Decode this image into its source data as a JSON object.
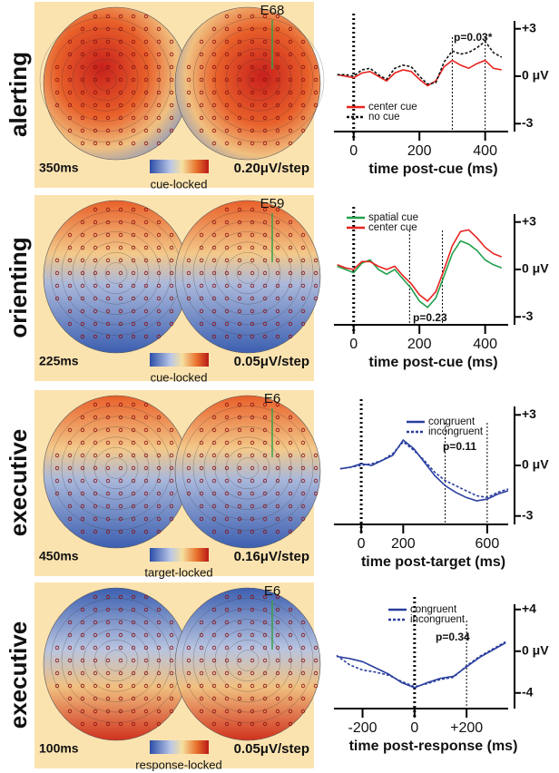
{
  "panels": [
    {
      "row_label": "alerting",
      "time": "350ms",
      "scale": "0.20μV/step",
      "lock": "cue-locked",
      "electrode": "E68"
    },
    {
      "row_label": "orienting",
      "time": "225ms",
      "scale": "0.05μV/step",
      "lock": "cue-locked",
      "electrode": "E59"
    },
    {
      "row_label": "executive",
      "time": "450ms",
      "scale": "0.16μV/step",
      "lock": "target-locked",
      "electrode": "E6"
    },
    {
      "row_label": "executive",
      "time": "100ms",
      "scale": "0.05μV/step",
      "lock": "response-locked",
      "electrode": "E6"
    }
  ],
  "chart_data": [
    {
      "type": "line",
      "xlabel": "time  post-cue (ms)",
      "annotation": "p=0.03*",
      "onset": 0,
      "window": [
        300,
        400
      ],
      "x": [
        -50,
        -25,
        0,
        25,
        50,
        75,
        100,
        125,
        150,
        175,
        200,
        225,
        250,
        275,
        300,
        325,
        350,
        375,
        400,
        425,
        450
      ],
      "xlim": [
        -60,
        470
      ],
      "xticks": [
        0,
        200,
        400
      ],
      "ylim": [
        -3.5,
        3.5
      ],
      "yticks": [
        {
          "value": 3,
          "label": "+3"
        },
        {
          "value": 0,
          "label": "0 μV"
        },
        -3
      ],
      "series": [
        {
          "name": "center cue",
          "color": "#e8231f",
          "dash": "solid",
          "values": [
            0.1,
            0,
            -0.1,
            0.2,
            0.3,
            0,
            -0.3,
            0.2,
            0.4,
            0.3,
            -0.2,
            -0.6,
            -0.3,
            0.6,
            1.0,
            0.7,
            0.5,
            0.8,
            1.0,
            0.5,
            0.4
          ]
        },
        {
          "name": "no cue",
          "color": "#111111",
          "dash": "dotted",
          "values": [
            0.1,
            0.1,
            0,
            0.4,
            0.5,
            0.1,
            -0.2,
            0.5,
            0.7,
            0.6,
            0,
            -0.5,
            -0.4,
            0.9,
            1.6,
            1.4,
            1.5,
            1.8,
            2.2,
            1.5,
            1.2
          ]
        }
      ]
    },
    {
      "type": "line",
      "xlabel": "time  post-cue (ms)",
      "annotation": "p=0.23",
      "onset": 0,
      "window": [
        170,
        270
      ],
      "x": [
        -50,
        -25,
        0,
        25,
        50,
        75,
        100,
        125,
        150,
        175,
        200,
        225,
        250,
        275,
        300,
        325,
        350,
        375,
        400,
        425,
        450
      ],
      "xlim": [
        -60,
        470
      ],
      "xticks": [
        0,
        200,
        400
      ],
      "ylim": [
        -3.5,
        3.5
      ],
      "yticks": [
        {
          "value": 3,
          "label": "+3"
        },
        {
          "value": 0,
          "label": "0 μV"
        },
        -3
      ],
      "series": [
        {
          "name": "spatial cue",
          "color": "#22a04b",
          "dash": "solid",
          "values": [
            0.2,
            0,
            -0.2,
            0.4,
            0.6,
            0,
            -0.3,
            0,
            -0.6,
            -1.2,
            -2.0,
            -2.4,
            -1.8,
            -0.4,
            1.0,
            1.8,
            1.6,
            1.2,
            0.6,
            0.3,
            0.1
          ]
        },
        {
          "name": "center cue",
          "color": "#e8231f",
          "dash": "solid",
          "values": [
            0.3,
            0.1,
            0,
            0.5,
            0.5,
            0.2,
            0,
            0.2,
            -0.4,
            -0.9,
            -1.6,
            -2.0,
            -1.4,
            0,
            1.5,
            2.4,
            2.5,
            2.0,
            1.4,
            1.0,
            0.8
          ]
        }
      ]
    },
    {
      "type": "line",
      "xlabel": "time  post-target (ms)",
      "annotation": "p=0.11",
      "onset": 0,
      "window": [
        400,
        600
      ],
      "x": [
        -100,
        -50,
        0,
        50,
        100,
        150,
        200,
        250,
        300,
        350,
        400,
        450,
        500,
        550,
        600,
        650,
        700
      ],
      "xlim": [
        -130,
        700
      ],
      "xticks": [
        0,
        200,
        600
      ],
      "ylim": [
        -3.5,
        3.5
      ],
      "yticks": [
        {
          "value": 3,
          "label": "+3"
        },
        {
          "value": 0,
          "label": "0 μV"
        },
        -3
      ],
      "series": [
        {
          "name": "congruent",
          "color": "#2a3f9e",
          "dash": "solid",
          "values": [
            -0.2,
            -0.1,
            0.1,
            0,
            0.3,
            0.6,
            1.5,
            1.0,
            0.2,
            -0.6,
            -1.2,
            -1.6,
            -1.9,
            -2.1,
            -2.0,
            -1.7,
            -1.5
          ]
        },
        {
          "name": "incongruent",
          "color": "#2a3f9e",
          "dash": "dotted",
          "values": [
            -0.2,
            -0.1,
            0,
            0.1,
            0.3,
            0.7,
            1.4,
            0.9,
            0.3,
            -0.4,
            -0.9,
            -1.2,
            -1.5,
            -1.8,
            -1.9,
            -1.6,
            -1.4
          ]
        }
      ]
    },
    {
      "type": "line",
      "xlabel": "time  post-response (ms)",
      "annotation": "p=0.34",
      "onset": 0,
      "window": [
        200
      ],
      "x": [
        -300,
        -250,
        -200,
        -150,
        -100,
        -50,
        0,
        50,
        100,
        150,
        200,
        250,
        300,
        350
      ],
      "xlim": [
        -310,
        360
      ],
      "xticks": [
        -200,
        0,
        {
          "value": 200,
          "label": "+200"
        }
      ],
      "ylim": [
        -5.5,
        4.5
      ],
      "yticks": [
        {
          "value": 4,
          "label": "+4"
        },
        {
          "value": 0,
          "label": "0 μV"
        },
        -4
      ],
      "series": [
        {
          "name": "congruent",
          "color": "#2a3f9e",
          "dash": "solid",
          "values": [
            -0.5,
            -0.7,
            -1.0,
            -1.6,
            -2.2,
            -3.0,
            -3.5,
            -3.0,
            -2.6,
            -2.4,
            -1.5,
            -0.6,
            0.1,
            0.8
          ]
        },
        {
          "name": "incongruent",
          "color": "#2a3f9e",
          "dash": "dotted",
          "values": [
            -0.4,
            -1.3,
            -1.8,
            -2.0,
            -2.3,
            -2.9,
            -3.4,
            -3.1,
            -2.7,
            -2.5,
            -1.4,
            -0.5,
            0.2,
            0.9
          ]
        }
      ]
    }
  ]
}
